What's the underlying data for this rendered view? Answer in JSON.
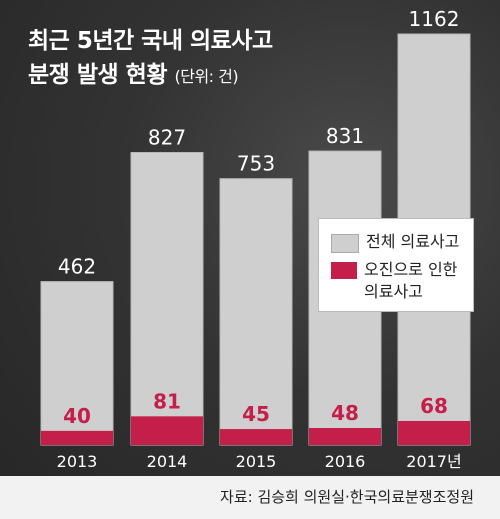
{
  "title_line1": "최근 5년간 국내 의료사고",
  "title_line2": "분쟁 발생 현황",
  "title_unit": "(단위: 건)",
  "source": "자료: 김승희 의원실·한국의료분쟁조정원",
  "colors": {
    "total": "#cfcfcf",
    "error": "#c41f4a",
    "background": "#333333"
  },
  "chart_data": {
    "type": "bar",
    "categories": [
      "2013",
      "2014",
      "2015",
      "2016",
      "2017년"
    ],
    "series": [
      {
        "name": "전체 의료사고",
        "values": [
          462,
          827,
          753,
          831,
          1162
        ]
      },
      {
        "name": "오진으로 인한 의료사고",
        "values": [
          40,
          81,
          45,
          48,
          68
        ]
      }
    ],
    "legend_position": "right"
  }
}
